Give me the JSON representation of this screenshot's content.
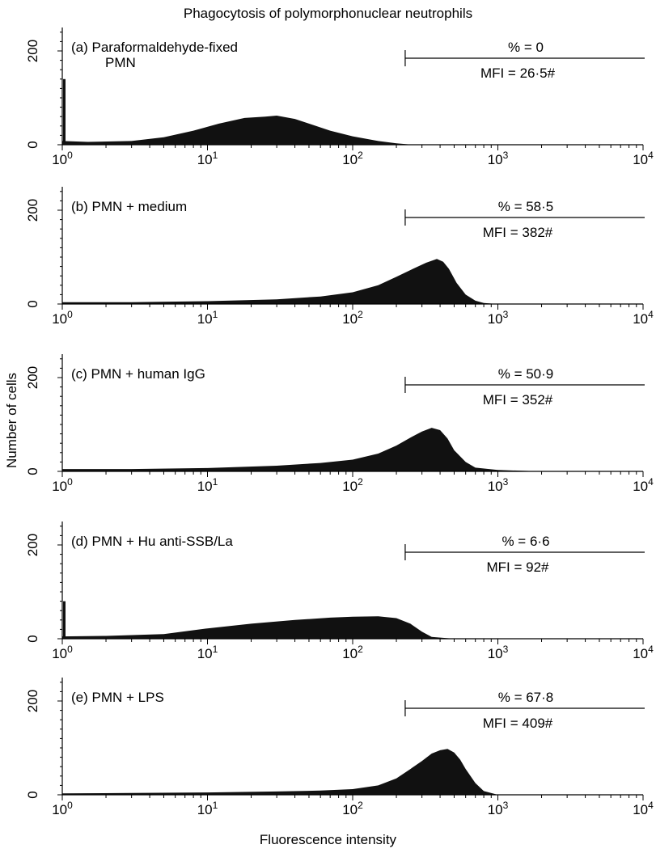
{
  "chart_data": {
    "type": "area",
    "title": "Phagocytosis of polymorphonuclear neutrophils",
    "xlabel": "Fluorescence intensity",
    "ylabel": "Number of cells",
    "xscale": "log",
    "xlim": [
      1,
      10000
    ],
    "ylim": [
      0,
      250
    ],
    "x_ticks": [
      {
        "base": "10",
        "exp": "0"
      },
      {
        "base": "10",
        "exp": "1"
      },
      {
        "base": "10",
        "exp": "2"
      },
      {
        "base": "10",
        "exp": "3"
      },
      {
        "base": "10",
        "exp": "4"
      }
    ],
    "y_ticks": [
      "0",
      "200"
    ],
    "gate_start": 230,
    "fill_color": "#111111",
    "panels": [
      {
        "label_lines": [
          "(a)  Paraformaldehyde-fixed",
          "PMN"
        ],
        "percent_text": "% = 0",
        "mfi_text": "MFI = 26·5#",
        "edge_spike": 140,
        "x": [
          1,
          1.5,
          3,
          5,
          8,
          12,
          18,
          25,
          30,
          40,
          50,
          70,
          100,
          150,
          200,
          260,
          1000,
          10000
        ],
        "y": [
          8,
          6,
          8,
          16,
          30,
          45,
          57,
          60,
          62,
          55,
          45,
          30,
          18,
          8,
          3,
          0,
          0,
          0
        ]
      },
      {
        "label_lines": [
          "(b)  PMN + medium"
        ],
        "percent_text": "% = 58·5",
        "mfi_text": "MFI = 382#",
        "edge_spike": 0,
        "x": [
          1,
          3,
          10,
          30,
          60,
          100,
          150,
          200,
          260,
          320,
          380,
          420,
          460,
          520,
          600,
          700,
          800,
          1000,
          10000
        ],
        "y": [
          4,
          4,
          6,
          10,
          16,
          25,
          40,
          58,
          75,
          88,
          96,
          90,
          75,
          45,
          20,
          7,
          2,
          0,
          0
        ]
      },
      {
        "label_lines": [
          "(c)  PMN + human IgG"
        ],
        "percent_text": "% = 50·9",
        "mfi_text": "MFI = 352#",
        "edge_spike": 0,
        "x": [
          1,
          3,
          10,
          30,
          60,
          100,
          150,
          200,
          250,
          300,
          350,
          400,
          450,
          500,
          600,
          700,
          1000,
          2000,
          10000
        ],
        "y": [
          5,
          5,
          7,
          12,
          18,
          25,
          38,
          55,
          72,
          85,
          93,
          88,
          70,
          45,
          20,
          8,
          3,
          0,
          0
        ]
      },
      {
        "label_lines": [
          "(d)  PMN + Hu anti-SSB/La"
        ],
        "percent_text": "% = 6·6",
        "mfi_text": "MFI = 92#",
        "edge_spike": 80,
        "x": [
          1,
          2,
          5,
          10,
          20,
          40,
          70,
          100,
          150,
          200,
          250,
          300,
          350,
          500,
          10000
        ],
        "y": [
          5,
          6,
          10,
          22,
          32,
          40,
          45,
          47,
          48,
          44,
          32,
          15,
          4,
          0,
          0
        ]
      },
      {
        "label_lines": [
          "(e)  PMN + LPS"
        ],
        "percent_text": "% = 67·8",
        "mfi_text": "MFI = 409#",
        "edge_spike": 0,
        "x": [
          1,
          3,
          10,
          30,
          60,
          100,
          150,
          200,
          250,
          300,
          350,
          400,
          450,
          500,
          550,
          600,
          700,
          800,
          1000,
          10000
        ],
        "y": [
          3,
          4,
          5,
          7,
          9,
          12,
          20,
          35,
          55,
          72,
          88,
          95,
          98,
          90,
          75,
          55,
          25,
          8,
          0,
          0
        ]
      }
    ]
  }
}
